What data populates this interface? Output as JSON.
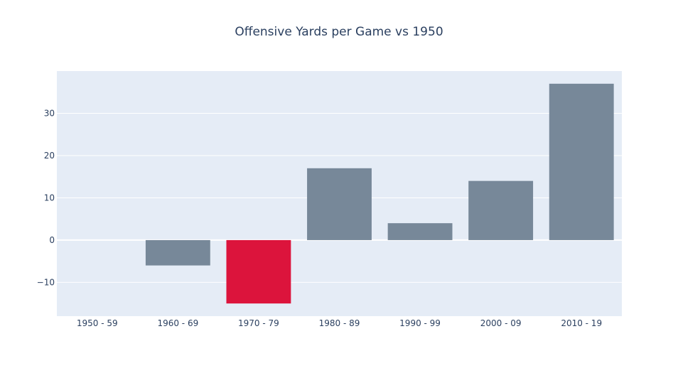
{
  "chart_data": {
    "type": "bar",
    "title": "Offensive Yards per Game vs 1950",
    "xlabel": "",
    "ylabel": "",
    "categories": [
      "1950 - 59",
      "1960 - 69",
      "1970 - 79",
      "1980 - 89",
      "1990 - 99",
      "2000 - 09",
      "2010 - 19"
    ],
    "values": [
      0,
      -6,
      -15,
      17,
      4,
      14,
      37
    ],
    "bar_colors": [
      "#778899",
      "#778899",
      "#DC143C",
      "#778899",
      "#778899",
      "#778899",
      "#778899"
    ],
    "ylim": [
      -18,
      40
    ],
    "yticks": [
      -10,
      0,
      10,
      20,
      30
    ],
    "ytick_labels": [
      "−10",
      "0",
      "10",
      "20",
      "30"
    ],
    "grid": true,
    "legend": "none"
  },
  "colors": {
    "plot_background": "#E5ECF6",
    "gridline": "#ffffff",
    "text": "#2a3f5f"
  }
}
